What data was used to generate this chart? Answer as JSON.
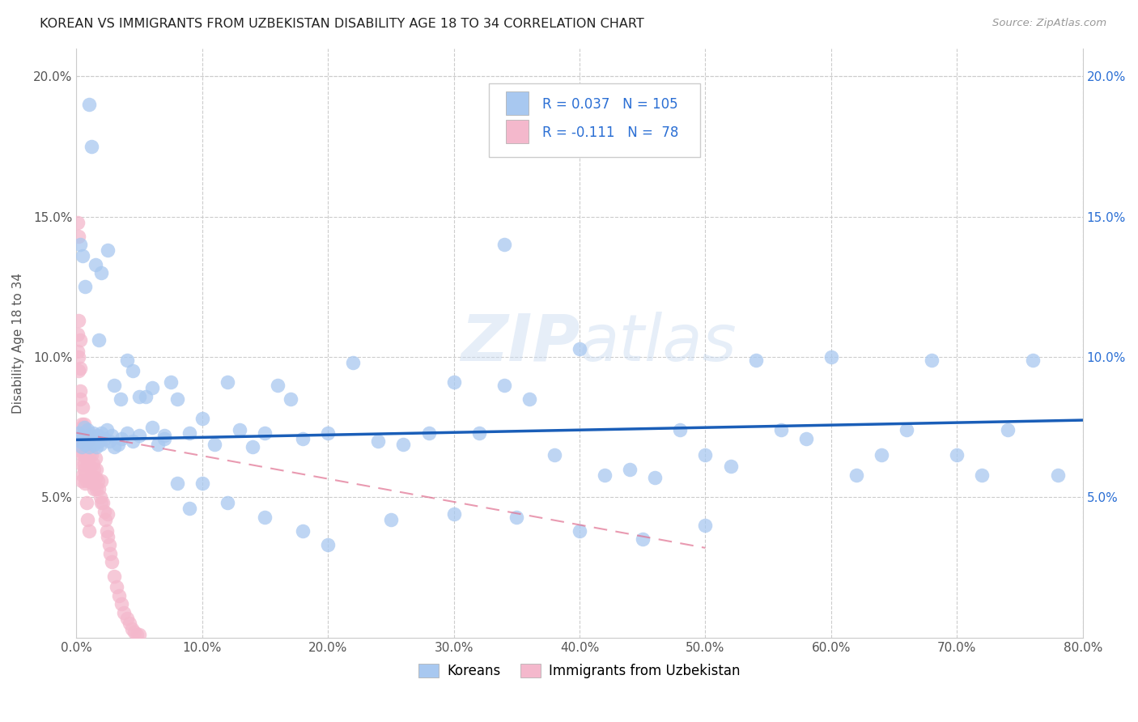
{
  "title": "KOREAN VS IMMIGRANTS FROM UZBEKISTAN DISABILITY AGE 18 TO 34 CORRELATION CHART",
  "source": "Source: ZipAtlas.com",
  "ylabel": "Disability Age 18 to 34",
  "watermark": "ZIPatlas",
  "korean_R": 0.037,
  "korean_N": 105,
  "uzbek_R": -0.111,
  "uzbek_N": 78,
  "korean_color": "#a8c8f0",
  "uzbek_color": "#f4b8cc",
  "korean_line_color": "#1a5eb8",
  "uzbek_line_color": "#e07090",
  "xlim": [
    0.0,
    0.8
  ],
  "ylim": [
    0.0,
    0.21
  ],
  "xticks": [
    0.0,
    0.1,
    0.2,
    0.3,
    0.4,
    0.5,
    0.6,
    0.7,
    0.8
  ],
  "yticks": [
    0.0,
    0.05,
    0.1,
    0.15,
    0.2
  ],
  "ytick_labels_left": [
    "",
    "5.0%",
    "10.0%",
    "15.0%",
    "20.0%"
  ],
  "ytick_labels_right": [
    "",
    "5.0%",
    "10.0%",
    "15.0%",
    "20.0%"
  ],
  "xtick_labels": [
    "0.0%",
    "10.0%",
    "20.0%",
    "30.0%",
    "40.0%",
    "50.0%",
    "60.0%",
    "70.0%",
    "80.0%"
  ],
  "korean_x": [
    0.002,
    0.003,
    0.004,
    0.005,
    0.006,
    0.007,
    0.008,
    0.009,
    0.01,
    0.011,
    0.012,
    0.013,
    0.014,
    0.015,
    0.016,
    0.017,
    0.018,
    0.019,
    0.02,
    0.022,
    0.024,
    0.026,
    0.028,
    0.03,
    0.033,
    0.036,
    0.04,
    0.045,
    0.05,
    0.055,
    0.06,
    0.065,
    0.07,
    0.075,
    0.08,
    0.09,
    0.1,
    0.11,
    0.12,
    0.13,
    0.14,
    0.15,
    0.16,
    0.17,
    0.18,
    0.2,
    0.22,
    0.24,
    0.26,
    0.28,
    0.3,
    0.32,
    0.34,
    0.36,
    0.38,
    0.4,
    0.42,
    0.44,
    0.46,
    0.48,
    0.5,
    0.52,
    0.54,
    0.56,
    0.58,
    0.6,
    0.62,
    0.64,
    0.66,
    0.68,
    0.7,
    0.72,
    0.74,
    0.76,
    0.78,
    0.003,
    0.005,
    0.007,
    0.01,
    0.012,
    0.015,
    0.018,
    0.02,
    0.025,
    0.03,
    0.035,
    0.04,
    0.045,
    0.05,
    0.06,
    0.07,
    0.08,
    0.09,
    0.1,
    0.12,
    0.15,
    0.18,
    0.2,
    0.25,
    0.3,
    0.35,
    0.4,
    0.45,
    0.5,
    0.34
  ],
  "korean_y": [
    0.073,
    0.07,
    0.068,
    0.072,
    0.075,
    0.069,
    0.071,
    0.074,
    0.068,
    0.072,
    0.07,
    0.073,
    0.069,
    0.071,
    0.068,
    0.072,
    0.07,
    0.069,
    0.073,
    0.071,
    0.074,
    0.07,
    0.072,
    0.068,
    0.069,
    0.071,
    0.073,
    0.07,
    0.072,
    0.086,
    0.075,
    0.069,
    0.072,
    0.091,
    0.085,
    0.073,
    0.078,
    0.069,
    0.091,
    0.074,
    0.068,
    0.073,
    0.09,
    0.085,
    0.071,
    0.073,
    0.098,
    0.07,
    0.069,
    0.073,
    0.091,
    0.073,
    0.09,
    0.085,
    0.065,
    0.103,
    0.058,
    0.06,
    0.057,
    0.074,
    0.065,
    0.061,
    0.099,
    0.074,
    0.071,
    0.1,
    0.058,
    0.065,
    0.074,
    0.099,
    0.065,
    0.058,
    0.074,
    0.099,
    0.058,
    0.14,
    0.136,
    0.125,
    0.19,
    0.175,
    0.133,
    0.106,
    0.13,
    0.138,
    0.09,
    0.085,
    0.099,
    0.095,
    0.086,
    0.089,
    0.071,
    0.055,
    0.046,
    0.055,
    0.048,
    0.043,
    0.038,
    0.033,
    0.042,
    0.044,
    0.043,
    0.038,
    0.035,
    0.04,
    0.14
  ],
  "uzbek_x": [
    0.001,
    0.001,
    0.002,
    0.002,
    0.002,
    0.003,
    0.003,
    0.003,
    0.003,
    0.004,
    0.004,
    0.004,
    0.004,
    0.005,
    0.005,
    0.005,
    0.005,
    0.006,
    0.006,
    0.006,
    0.007,
    0.007,
    0.007,
    0.008,
    0.008,
    0.008,
    0.009,
    0.009,
    0.01,
    0.01,
    0.01,
    0.011,
    0.011,
    0.012,
    0.012,
    0.013,
    0.013,
    0.014,
    0.014,
    0.015,
    0.015,
    0.016,
    0.016,
    0.017,
    0.018,
    0.019,
    0.02,
    0.02,
    0.021,
    0.022,
    0.023,
    0.024,
    0.025,
    0.025,
    0.026,
    0.027,
    0.028,
    0.03,
    0.032,
    0.034,
    0.036,
    0.038,
    0.04,
    0.042,
    0.044,
    0.046,
    0.048,
    0.05,
    0.001,
    0.002,
    0.003,
    0.004,
    0.005,
    0.006,
    0.007,
    0.008,
    0.009,
    0.01
  ],
  "uzbek_y": [
    0.148,
    0.102,
    0.143,
    0.113,
    0.1,
    0.106,
    0.096,
    0.088,
    0.07,
    0.076,
    0.068,
    0.062,
    0.056,
    0.082,
    0.072,
    0.066,
    0.058,
    0.076,
    0.07,
    0.062,
    0.073,
    0.065,
    0.058,
    0.072,
    0.064,
    0.056,
    0.07,
    0.062,
    0.073,
    0.065,
    0.056,
    0.068,
    0.061,
    0.065,
    0.058,
    0.062,
    0.055,
    0.06,
    0.053,
    0.064,
    0.057,
    0.06,
    0.053,
    0.056,
    0.053,
    0.05,
    0.056,
    0.048,
    0.048,
    0.045,
    0.042,
    0.038,
    0.044,
    0.036,
    0.033,
    0.03,
    0.027,
    0.022,
    0.018,
    0.015,
    0.012,
    0.009,
    0.007,
    0.005,
    0.003,
    0.002,
    0.001,
    0.001,
    0.108,
    0.095,
    0.085,
    0.075,
    0.065,
    0.06,
    0.055,
    0.048,
    0.042,
    0.038
  ],
  "korean_trend_x": [
    0.0,
    0.8
  ],
  "korean_trend_y": [
    0.0705,
    0.0775
  ],
  "uzbek_trend_x": [
    0.0,
    0.5
  ],
  "uzbek_trend_y": [
    0.073,
    0.032
  ]
}
